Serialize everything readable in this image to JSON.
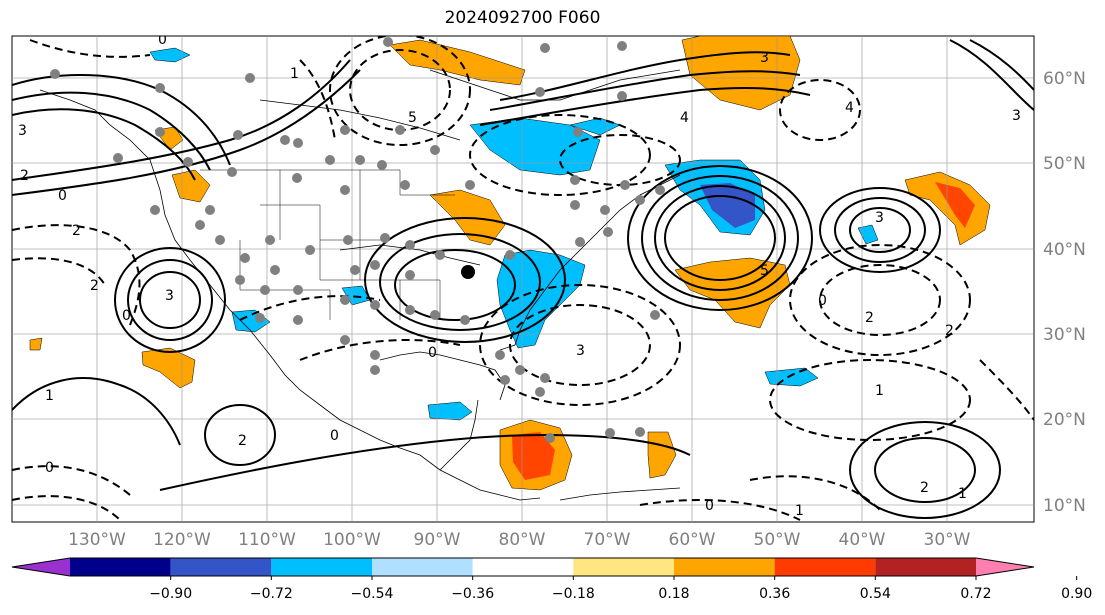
{
  "title": "2024092700 F060",
  "latitude_labels": [
    "60°N",
    "50°N",
    "40°N",
    "30°N",
    "20°N",
    "10°N"
  ],
  "longitude_labels": [
    "130°W",
    "120°W",
    "110°W",
    "100°W",
    "90°W",
    "80°W",
    "70°W",
    "60°W",
    "50°W",
    "40°W",
    "30°W"
  ],
  "colorbar": {
    "ticks": [
      "−0.90",
      "−0.72",
      "−0.54",
      "−0.36",
      "−0.18",
      "0.18",
      "0.36",
      "0.54",
      "0.72",
      "0.90"
    ],
    "colors": [
      "#9b30d0",
      "#00008b",
      "#3455c8",
      "#00bfff",
      "#b0e0ff",
      "#ffffff",
      "#ffe680",
      "#ffa500",
      "#ff3c00",
      "#b22222",
      "#ff80b0"
    ]
  },
  "fill_colors": {
    "orange": "#ffa500",
    "red_orange": "#ff4500",
    "light_blue": "#00bfff",
    "medium_blue": "#4169e1"
  },
  "contour_labels": [
    "0",
    "1",
    "2",
    "3",
    "4",
    "5"
  ],
  "grid": "on"
}
